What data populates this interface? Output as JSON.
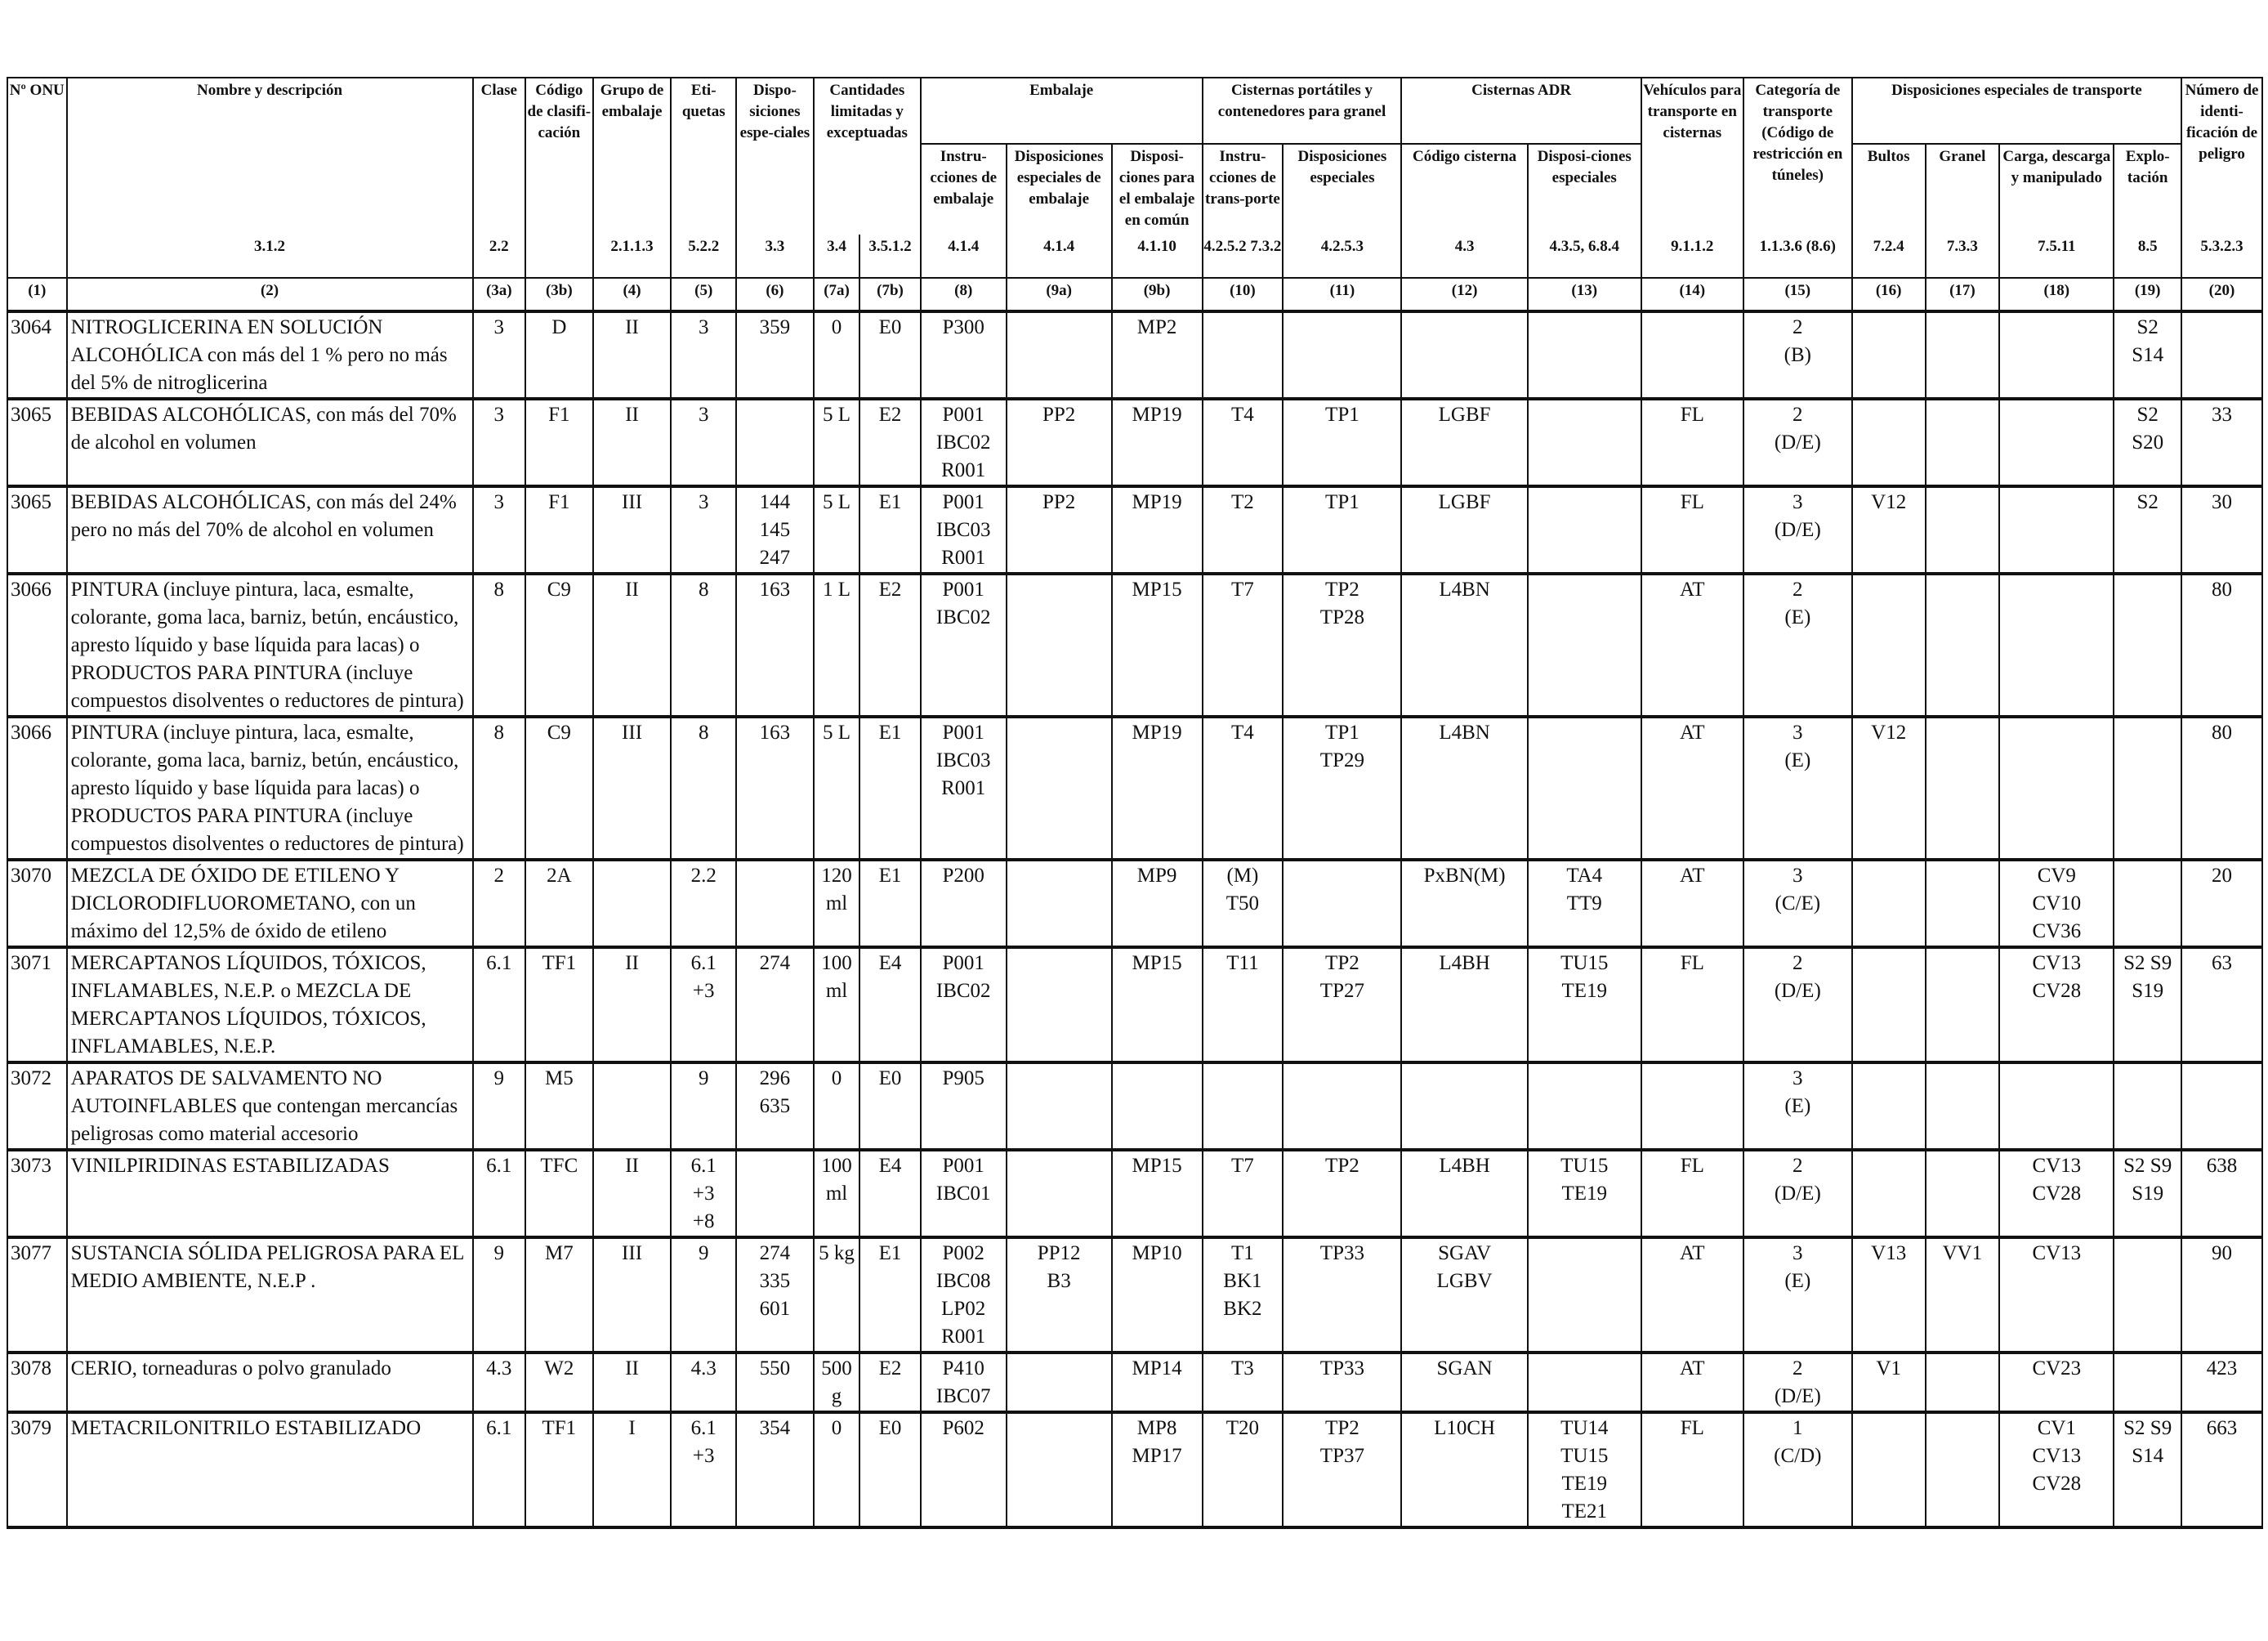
{
  "header": {
    "onu": "Nº ONU",
    "name": "Nombre y descripción",
    "clase": "Clase",
    "codigo_clasif": "Código de clasifi-cación",
    "grupo": "Grupo de embalaje",
    "etiquetas": "Eti-quetas",
    "disposiciones": "Dispo-siciones espe-ciales",
    "cantidades": "Cantidades limitadas y exceptuadas",
    "embalaje": "Embalaje",
    "instr_emb": "Instru-cciones de embalaje",
    "disp_esp_emb": "Disposiciones especiales de embalaje",
    "disp_comun": "Disposi-ciones para el embalaje en común",
    "cisternas_port": "Cisternas portátiles y contenedores para granel",
    "instr_transp": "Instru-cciones de trans-porte",
    "disp_esp_cist": "Disposiciones especiales",
    "cisternas_adr": "Cisternas ADR",
    "codigo_cisterna": "Código cisterna",
    "disp_esp_adr": "Disposi-ciones especiales",
    "vehiculos": "Vehículos para transporte en cisternas",
    "categoria": "Categoría de transporte (Código de restricción en túneles)",
    "disp_transp": "Disposiciones especiales de transporte",
    "bultos": "Bultos",
    "granel": "Granel",
    "carga": "Carga, descarga y manipulado",
    "explotacion": "Explo-tación",
    "numero_peligro": "Número de identi-ficación de peligro",
    "refs": [
      "",
      "3.1.2",
      "2.2",
      "",
      "2.1.1.3",
      "5.2.2",
      "3.3",
      "3.4",
      "3.5.1.2",
      "4.1.4",
      "4.1.4",
      "4.1.10",
      "4.2.5.2 7.3.2",
      "4.2.5.3",
      "4.3",
      "4.3.5, 6.8.4",
      "9.1.1.2",
      "1.1.3.6 (8.6)",
      "7.2.4",
      "7.3.3",
      "7.5.11",
      "8.5",
      "5.3.2.3"
    ],
    "col_numbers": [
      "(1)",
      "(2)",
      "(3a)",
      "(3b)",
      "(4)",
      "(5)",
      "(6)",
      "(7a)",
      "(7b)",
      "(8)",
      "(9a)",
      "(9b)",
      "(10)",
      "(11)",
      "(12)",
      "(13)",
      "(14)",
      "(15)",
      "(16)",
      "(17)",
      "(18)",
      "(19)",
      "(20)"
    ]
  },
  "rows": [
    {
      "onu": "3064",
      "name": "NITROGLICERINA EN SOLUCIÓN ALCOHÓLICA con más del 1 % pero no más del 5% de nitroglicerina",
      "clase": "3",
      "codigo": "D",
      "grupo": "II",
      "etiquetas": "3",
      "disp": "359",
      "q7a": "0",
      "q7b": "E0",
      "instr": "P300",
      "pp": "",
      "mp": "MP2",
      "t10": "",
      "tp": "",
      "cist": "",
      "ta": "",
      "veh": "",
      "cat": "2\n(B)",
      "bultos": "",
      "granel": "",
      "carga": "",
      "explo": "S2\nS14",
      "peligro": ""
    },
    {
      "onu": "3065",
      "name": "BEBIDAS ALCOHÓLICAS, con más del 70% de alcohol en volumen",
      "clase": "3",
      "codigo": "F1",
      "grupo": "II",
      "etiquetas": "3",
      "disp": "",
      "q7a": "5 L",
      "q7b": "E2",
      "instr": "P001\nIBC02\nR001",
      "pp": "PP2",
      "mp": "MP19",
      "t10": "T4",
      "tp": "TP1",
      "cist": "LGBF",
      "ta": "",
      "veh": "FL",
      "cat": "2\n(D/E)",
      "bultos": "",
      "granel": "",
      "carga": "",
      "explo": "S2\nS20",
      "peligro": "33"
    },
    {
      "onu": "3065",
      "name": "BEBIDAS ALCOHÓLICAS, con más del 24% pero no más del 70% de alcohol en volumen",
      "clase": "3",
      "codigo": "F1",
      "grupo": "III",
      "etiquetas": "3",
      "disp": "144\n145\n247",
      "q7a": "5 L",
      "q7b": "E1",
      "instr": "P001\nIBC03\nR001",
      "pp": "PP2",
      "mp": "MP19",
      "t10": "T2",
      "tp": "TP1",
      "cist": "LGBF",
      "ta": "",
      "veh": "FL",
      "cat": "3\n(D/E)",
      "bultos": "V12",
      "granel": "",
      "carga": "",
      "explo": "S2",
      "peligro": "30"
    },
    {
      "onu": "3066",
      "name": "PINTURA (incluye pintura, laca, esmalte, colorante, goma laca, barniz, betún, encáustico, apresto líquido y base líquida para lacas) o PRODUCTOS PARA PINTURA (incluye compuestos disolventes o reductores de pintura)",
      "clase": "8",
      "codigo": "C9",
      "grupo": "II",
      "etiquetas": "8",
      "disp": "163",
      "q7a": "1 L",
      "q7b": "E2",
      "instr": "P001\nIBC02",
      "pp": "",
      "mp": "MP15",
      "t10": "T7",
      "tp": "TP2\nTP28",
      "cist": "L4BN",
      "ta": "",
      "veh": "AT",
      "cat": "2\n(E)",
      "bultos": "",
      "granel": "",
      "carga": "",
      "explo": "",
      "peligro": "80"
    },
    {
      "onu": "3066",
      "name": "PINTURA (incluye pintura, laca, esmalte, colorante, goma laca, barniz, betún, encáustico, apresto líquido y base líquida para lacas) o PRODUCTOS PARA PINTURA (incluye compuestos disolventes o reductores de pintura)",
      "clase": "8",
      "codigo": "C9",
      "grupo": "III",
      "etiquetas": "8",
      "disp": "163",
      "q7a": "5 L",
      "q7b": "E1",
      "instr": "P001\nIBC03\nR001",
      "pp": "",
      "mp": "MP19",
      "t10": "T4",
      "tp": "TP1\nTP29",
      "cist": "L4BN",
      "ta": "",
      "veh": "AT",
      "cat": "3\n(E)",
      "bultos": "V12",
      "granel": "",
      "carga": "",
      "explo": "",
      "peligro": "80"
    },
    {
      "onu": "3070",
      "name": "MEZCLA DE ÓXIDO DE ETILENO Y DICLORODIFLUOROMETANO, con un máximo del 12,5% de óxido de etileno",
      "clase": "2",
      "codigo": "2A",
      "grupo": "",
      "etiquetas": "2.2",
      "disp": "",
      "q7a": "120\nml",
      "q7b": "E1",
      "instr": "P200",
      "pp": "",
      "mp": "MP9",
      "t10": "(M)\nT50",
      "tp": "",
      "cist": "PxBN(M)",
      "ta": "TA4\nTT9",
      "veh": "AT",
      "cat": "3\n(C/E)",
      "bultos": "",
      "granel": "",
      "carga": "CV9\nCV10\nCV36",
      "explo": "",
      "peligro": "20"
    },
    {
      "onu": "3071",
      "name": "MERCAPTANOS LÍQUIDOS, TÓXICOS, INFLAMABLES, N.E.P. o MEZCLA DE MERCAPTANOS LÍQUIDOS, TÓXICOS, INFLAMABLES, N.E.P.",
      "clase": "6.1",
      "codigo": "TF1",
      "grupo": "II",
      "etiquetas": "6.1\n+3",
      "disp": "274",
      "q7a": "100\nml",
      "q7b": "E4",
      "instr": "P001\nIBC02",
      "pp": "",
      "mp": "MP15",
      "t10": "T11",
      "tp": "TP2\nTP27",
      "cist": "L4BH",
      "ta": "TU15\nTE19",
      "veh": "FL",
      "cat": "2\n(D/E)",
      "bultos": "",
      "granel": "",
      "carga": "CV13\nCV28",
      "explo": "S2 S9\nS19",
      "peligro": "63"
    },
    {
      "onu": "3072",
      "name": "APARATOS DE SALVAMENTO NO AUTOINFLABLES que contengan mercancías peligrosas como material accesorio",
      "clase": "9",
      "codigo": "M5",
      "grupo": "",
      "etiquetas": "9",
      "disp": "296\n635",
      "q7a": "0",
      "q7b": "E0",
      "instr": "P905",
      "pp": "",
      "mp": "",
      "t10": "",
      "tp": "",
      "cist": "",
      "ta": "",
      "veh": "",
      "cat": "3\n(E)",
      "bultos": "",
      "granel": "",
      "carga": "",
      "explo": "",
      "peligro": ""
    },
    {
      "onu": "3073",
      "name": "VINILPIRIDINAS ESTABILIZADAS",
      "clase": "6.1",
      "codigo": "TFC",
      "grupo": "II",
      "etiquetas": "6.1\n+3\n+8",
      "disp": "",
      "q7a": "100\nml",
      "q7b": "E4",
      "instr": "P001\nIBC01",
      "pp": "",
      "mp": "MP15",
      "t10": "T7",
      "tp": "TP2",
      "cist": "L4BH",
      "ta": "TU15\nTE19",
      "veh": "FL",
      "cat": "2\n(D/E)",
      "bultos": "",
      "granel": "",
      "carga": "CV13\nCV28",
      "explo": "S2 S9\nS19",
      "peligro": "638"
    },
    {
      "onu": "3077",
      "name": "SUSTANCIA SÓLIDA PELIGROSA PARA EL MEDIO AMBIENTE, N.E.P .",
      "clase": "9",
      "codigo": "M7",
      "grupo": "III",
      "etiquetas": "9",
      "disp": "274\n335\n601",
      "q7a": "5 kg",
      "q7b": "E1",
      "instr": "P002\nIBC08\nLP02\nR001",
      "pp": "PP12\nB3",
      "mp": "MP10",
      "t10": "T1\nBK1\nBK2",
      "tp": "TP33",
      "cist": "SGAV\nLGBV",
      "ta": "",
      "veh": "AT",
      "cat": "3\n(E)",
      "bultos": "V13",
      "granel": "VV1",
      "carga": "CV13",
      "explo": "",
      "peligro": "90"
    },
    {
      "onu": "3078",
      "name": "CERIO, torneaduras o polvo granulado",
      "clase": "4.3",
      "codigo": "W2",
      "grupo": "II",
      "etiquetas": "4.3",
      "disp": "550",
      "q7a": "500\ng",
      "q7b": "E2",
      "instr": "P410\nIBC07",
      "pp": "",
      "mp": "MP14",
      "t10": "T3",
      "tp": "TP33",
      "cist": "SGAN",
      "ta": "",
      "veh": "AT",
      "cat": "2\n(D/E)",
      "bultos": "V1",
      "granel": "",
      "carga": "CV23",
      "explo": "",
      "peligro": "423"
    },
    {
      "onu": "3079",
      "name": "METACRILONITRILO ESTABILIZADO",
      "clase": "6.1",
      "codigo": "TF1",
      "grupo": "I",
      "etiquetas": "6.1\n+3",
      "disp": "354",
      "q7a": "0",
      "q7b": "E0",
      "instr": "P602",
      "pp": "",
      "mp": "MP8\nMP17",
      "t10": "T20",
      "tp": "TP2\nTP37",
      "cist": "L10CH",
      "ta": "TU14\nTU15\nTE19\nTE21",
      "veh": "FL",
      "cat": "1\n(C/D)",
      "bultos": "",
      "granel": "",
      "carga": "CV1\nCV13\nCV28",
      "explo": "S2 S9\nS14",
      "peligro": "663"
    }
  ]
}
